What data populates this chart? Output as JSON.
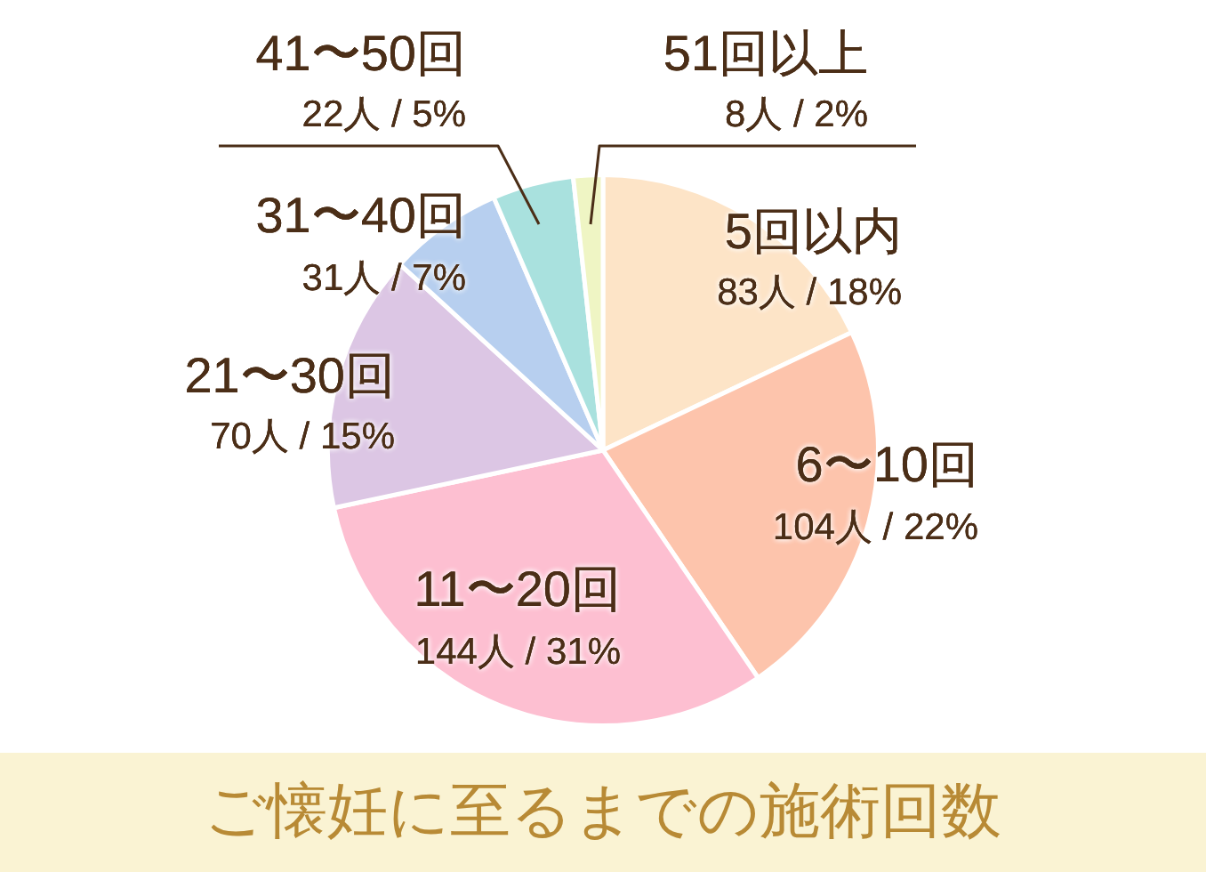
{
  "chart_data": {
    "type": "pie",
    "title": "ご懐妊に至るまでの施術回数",
    "categories": [
      "5回以内",
      "6〜10回",
      "11〜20回",
      "21〜30回",
      "31〜40回",
      "41〜50回",
      "51回以上"
    ],
    "values": [
      83,
      104,
      144,
      70,
      31,
      22,
      8
    ],
    "value_labels": [
      "83人 / 18%",
      "104人 / 22%",
      "144人 / 31%",
      "70人 / 15%",
      "31人 / 7%",
      "22人 / 5%",
      "8人 / 2%"
    ],
    "colors": [
      "#fde4c7",
      "#fdc4ac",
      "#fdbfd1",
      "#dcc6e4",
      "#b7cfef",
      "#a9e1de",
      "#eff5c4"
    ],
    "legend": false
  }
}
